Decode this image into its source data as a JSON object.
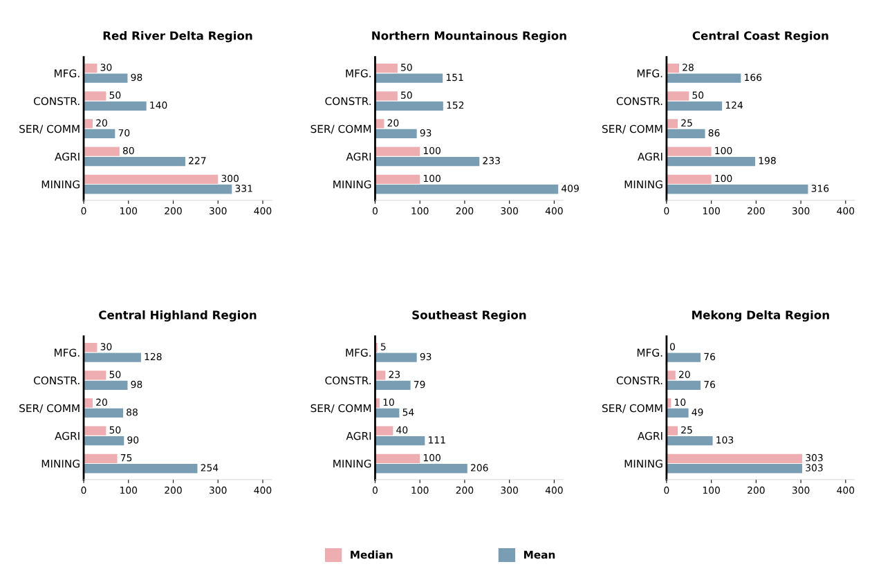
{
  "chart_data": [
    {
      "type": "bar",
      "orientation": "horizontal",
      "title": "Red River Delta Region",
      "categories": [
        "MFG.",
        "CONSTR.",
        "SER/ COMM",
        "AGRI",
        "MINING"
      ],
      "xlim": [
        0,
        420
      ],
      "xticks": [
        0,
        100,
        200,
        300,
        400
      ],
      "data_labels": true,
      "legend": "bottom",
      "series": [
        {
          "name": "Median",
          "color": "#eeadb1",
          "values": [
            30,
            50,
            20,
            80,
            300
          ]
        },
        {
          "name": "Mean",
          "color": "#799db3",
          "values": [
            98,
            140,
            70,
            227,
            331
          ]
        }
      ]
    },
    {
      "type": "bar",
      "orientation": "horizontal",
      "title": "Northern Mountainous Region",
      "categories": [
        "MFG.",
        "CONSTR.",
        "SER/ COMM",
        "AGRI",
        "MINING"
      ],
      "xlim": [
        0,
        420
      ],
      "xticks": [
        0,
        100,
        200,
        300,
        400
      ],
      "data_labels": true,
      "series": [
        {
          "color": "#eeadb1",
          "values": [
            50,
            50,
            20,
            100,
            100
          ]
        },
        {
          "color": "#799db3",
          "values": [
            151,
            152,
            93,
            233,
            409
          ]
        }
      ]
    },
    {
      "type": "bar",
      "orientation": "horizontal",
      "title": "Central Coast Region",
      "categories": [
        "MFG.",
        "CONSTR.",
        "SER/ COMM",
        "AGRI",
        "MINING"
      ],
      "xlim": [
        0,
        420
      ],
      "xticks": [
        0,
        100,
        200,
        300,
        400
      ],
      "data_labels": true,
      "series": [
        {
          "color": "#eeadb1",
          "values": [
            28,
            50,
            25,
            100,
            100
          ]
        },
        {
          "color": "#799db3",
          "values": [
            166,
            124,
            86,
            198,
            316
          ]
        }
      ]
    },
    {
      "type": "bar",
      "orientation": "horizontal",
      "title": "Central Highland Region",
      "categories": [
        "MFG.",
        "CONSTR.",
        "SER/ COMM",
        "AGRI",
        "MINING"
      ],
      "xlim": [
        0,
        420
      ],
      "xticks": [
        0,
        100,
        200,
        300,
        400
      ],
      "data_labels": true,
      "series": [
        {
          "color": "#eeadb1",
          "values": [
            30,
            50,
            20,
            50,
            75
          ]
        },
        {
          "color": "#799db3",
          "values": [
            128,
            98,
            88,
            90,
            254
          ]
        }
      ]
    },
    {
      "type": "bar",
      "orientation": "horizontal",
      "title": "Southeast Region",
      "categories": [
        "MFG.",
        "CONSTR.",
        "SER/ COMM",
        "AGRI",
        "MINING"
      ],
      "xlim": [
        0,
        420
      ],
      "xticks": [
        0,
        100,
        200,
        300,
        400
      ],
      "data_labels": true,
      "series": [
        {
          "color": "#eeadb1",
          "values": [
            5,
            23,
            10,
            40,
            100
          ]
        },
        {
          "color": "#799db3",
          "values": [
            93,
            79,
            54,
            111,
            206
          ]
        }
      ]
    },
    {
      "type": "bar",
      "orientation": "horizontal",
      "title": "Mekong Delta Region",
      "categories": [
        "MFG.",
        "CONSTR.",
        "SER/ COMM",
        "AGRI",
        "MINING"
      ],
      "xlim": [
        0,
        420
      ],
      "xticks": [
        0,
        100,
        200,
        300,
        400
      ],
      "data_labels": true,
      "series": [
        {
          "color": "#eeadb1",
          "values": [
            0,
            20,
            10,
            25,
            303
          ]
        },
        {
          "color": "#799db3",
          "values": [
            76,
            76,
            49,
            103,
            303
          ]
        }
      ]
    }
  ]
}
